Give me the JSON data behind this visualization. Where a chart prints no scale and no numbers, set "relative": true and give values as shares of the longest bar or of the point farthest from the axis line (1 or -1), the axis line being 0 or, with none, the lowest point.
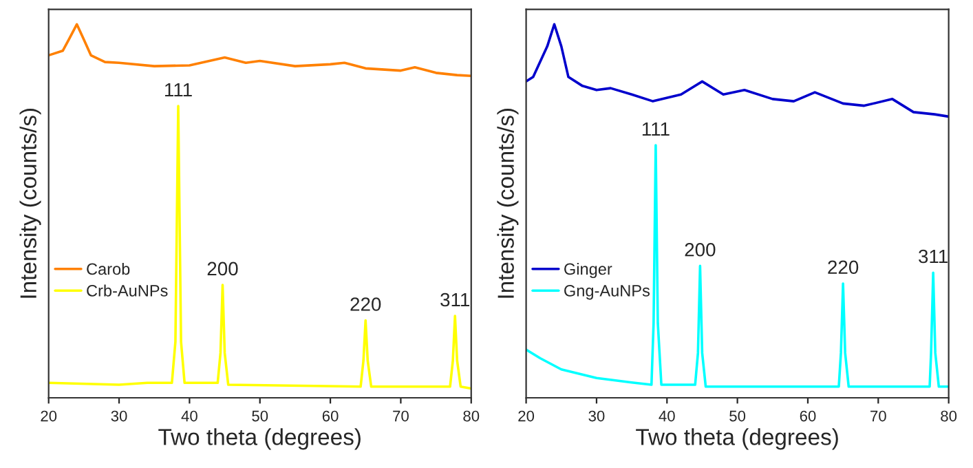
{
  "chart_data": [
    {
      "type": "line",
      "relative": true,
      "xlabel": "Two theta (degrees)",
      "ylabel": "Intensity (counts/s)",
      "xlim": [
        20,
        80
      ],
      "xticks": [
        20,
        30,
        40,
        50,
        60,
        70,
        80
      ],
      "tick_labels": "x",
      "legend": "left",
      "grid": false,
      "series": [
        {
          "name": "Carob",
          "color": "#ff8000",
          "x": [
            20,
            22,
            23,
            24,
            25,
            26,
            28,
            30,
            35,
            40,
            45,
            48,
            50,
            55,
            60,
            62,
            65,
            70,
            72,
            75,
            78,
            80
          ],
          "values": [
            0.917,
            0.929,
            0.964,
            1.0,
            0.959,
            0.917,
            0.899,
            0.897,
            0.888,
            0.89,
            0.911,
            0.897,
            0.902,
            0.888,
            0.893,
            0.897,
            0.882,
            0.876,
            0.885,
            0.87,
            0.864,
            0.862
          ]
        },
        {
          "name": "Crb-AuNPs",
          "color": "#ffff00",
          "x": [
            20,
            30,
            34,
            37.5,
            38.0,
            38.4,
            38.8,
            39.3,
            44,
            44.4,
            44.7,
            45.0,
            45.5,
            64.3,
            64.7,
            65.0,
            65.3,
            65.8,
            77.0,
            77.4,
            77.7,
            78.0,
            78.5,
            80
          ],
          "values": [
            0.04,
            0.035,
            0.04,
            0.04,
            0.15,
            0.781,
            0.15,
            0.04,
            0.04,
            0.12,
            0.302,
            0.12,
            0.035,
            0.03,
            0.1,
            0.207,
            0.1,
            0.03,
            0.03,
            0.1,
            0.219,
            0.1,
            0.03,
            0.025
          ]
        }
      ],
      "annotations": [
        {
          "text": "111",
          "x": 38.4,
          "y": 0.781
        },
        {
          "text": "200",
          "x": 44.7,
          "y": 0.302
        },
        {
          "text": "220",
          "x": 65.0,
          "y": 0.207
        },
        {
          "text": "311",
          "x": 77.7,
          "y": 0.219
        }
      ]
    },
    {
      "type": "line",
      "relative": true,
      "xlabel": "Two theta (degrees)",
      "ylabel": "Intensity (counts/s)",
      "xlim": [
        20,
        80
      ],
      "xticks": [
        20,
        30,
        40,
        50,
        60,
        70,
        80
      ],
      "tick_labels": "x",
      "legend": "left",
      "grid": false,
      "series": [
        {
          "name": "Ginger",
          "color": "#0000cc",
          "x": [
            20,
            21,
            23,
            24,
            25,
            26,
            28,
            30,
            32,
            35,
            38,
            42,
            45,
            48,
            51,
            55,
            58,
            61,
            65,
            68,
            72,
            75,
            78,
            80
          ],
          "values": [
            0.847,
            0.859,
            0.941,
            1.0,
            0.941,
            0.859,
            0.835,
            0.824,
            0.829,
            0.812,
            0.794,
            0.812,
            0.847,
            0.812,
            0.824,
            0.8,
            0.794,
            0.818,
            0.788,
            0.782,
            0.8,
            0.765,
            0.759,
            0.753
          ]
        },
        {
          "name": "Gng-AuNPs",
          "color": "#00ffff",
          "x": [
            20,
            22,
            25,
            30,
            35,
            37.8,
            38.1,
            38.4,
            38.7,
            39.2,
            44,
            44.4,
            44.7,
            45,
            45.5,
            64.4,
            64.7,
            65,
            65.3,
            65.8,
            77.3,
            77.5,
            77.8,
            78.1,
            78.6,
            80
          ],
          "values": [
            0.129,
            0.106,
            0.076,
            0.053,
            0.041,
            0.035,
            0.2,
            0.676,
            0.2,
            0.035,
            0.035,
            0.12,
            0.353,
            0.12,
            0.03,
            0.03,
            0.12,
            0.306,
            0.12,
            0.03,
            0.03,
            0.12,
            0.335,
            0.12,
            0.03,
            0.03
          ]
        }
      ],
      "annotations": [
        {
          "text": "111",
          "x": 38.4,
          "y": 0.676
        },
        {
          "text": "200",
          "x": 44.7,
          "y": 0.353
        },
        {
          "text": "220",
          "x": 65.0,
          "y": 0.306
        },
        {
          "text": "311",
          "x": 77.8,
          "y": 0.335
        }
      ]
    }
  ]
}
